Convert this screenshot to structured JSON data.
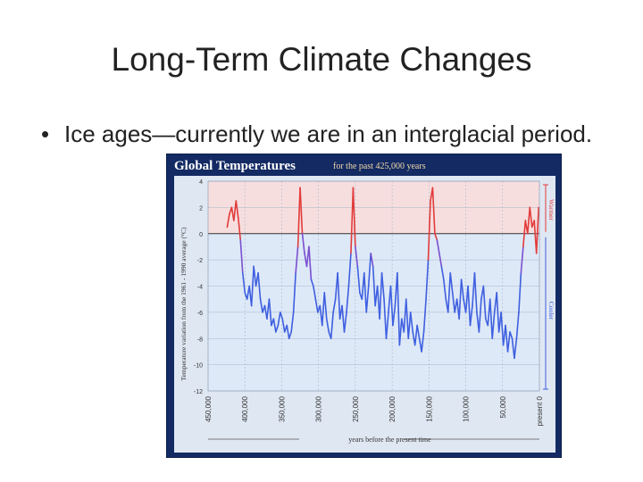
{
  "slide": {
    "title": "Long-Term Climate Changes",
    "bullet_symbol": "•",
    "bullet_text": "Ice ages—currently we are in an interglacial period."
  },
  "colors": {
    "frame": "#132a63",
    "warm_band": "#f7dede",
    "cool_band": "#dde9f7",
    "warm_line": "#e23b3b",
    "cool_line": "#3f5fe0",
    "title_text": "#ffffff",
    "subtitle_text": "#f3d9a8"
  },
  "chart_data": {
    "type": "line",
    "title": "Global Temperatures",
    "subtitle": "for the past 425,000 years",
    "xlabel": "years before the present time",
    "ylabel": "Temperature variation from the 1961 - 1990 average (°C)",
    "xlim": [
      450000,
      0
    ],
    "ylim": [
      -12,
      4
    ],
    "x_reversed": true,
    "grid": true,
    "legend": {
      "warmer": "Warmer",
      "cooler": "Cooler"
    },
    "x_ticks": [
      "450,000",
      "400,000",
      "350,000",
      "300,000",
      "250,000",
      "200,000",
      "150,000",
      "100,000",
      "50,000",
      "present 0"
    ],
    "x_tick_values": [
      450000,
      400000,
      350000,
      300000,
      250000,
      200000,
      150000,
      100000,
      50000,
      0
    ],
    "y_ticks": [
      "4",
      "2",
      "0",
      "-2",
      "-4",
      "-6",
      "-8",
      "-10",
      "-12"
    ],
    "y_tick_values": [
      4,
      2,
      0,
      -2,
      -4,
      -6,
      -8,
      -10,
      -12
    ],
    "series": [
      {
        "x": [
          424000,
          421000,
          418000,
          415000,
          412000,
          409000,
          406000,
          403000,
          400000,
          397000,
          394000,
          391000,
          388000,
          385000,
          382000,
          379000,
          376000,
          373000,
          370000,
          367000,
          364000,
          361000,
          358000,
          355000,
          352000,
          349000,
          346000,
          343000,
          340000,
          337000,
          334000,
          331000,
          328000,
          325000,
          322000,
          319000,
          316000,
          313000,
          310000,
          307000,
          304000,
          301000,
          298000,
          295000,
          292000,
          289000,
          286000,
          283000,
          280000,
          277000,
          274000,
          271000,
          268000,
          265000,
          262000,
          259000,
          256000,
          253000,
          250000,
          247000,
          244000,
          241000,
          238000,
          235000,
          232000,
          229000,
          226000,
          223000,
          220000,
          217000,
          214000,
          211000,
          208000,
          205000,
          202000,
          199000,
          196000,
          193000,
          190000,
          187000,
          184000,
          181000,
          178000,
          175000,
          172000,
          169000,
          166000,
          163000,
          160000,
          157000,
          154000,
          151000,
          148000,
          145000,
          142000,
          139000,
          136000,
          133000,
          130000,
          127000,
          124000,
          121000,
          118000,
          115000,
          112000,
          109000,
          106000,
          103000,
          100000,
          97000,
          94000,
          91000,
          88000,
          85000,
          82000,
          79000,
          76000,
          73000,
          70000,
          67000,
          64000,
          61000,
          58000,
          55000,
          52000,
          49000,
          46000,
          43000,
          40000,
          37000,
          34000,
          31000,
          28000,
          25000,
          22000,
          19000,
          16000,
          13000,
          10000,
          7000,
          4000,
          1000
        ],
        "values": [
          0.5,
          1.5,
          2.0,
          1.0,
          2.5,
          1.2,
          -0.5,
          -3.0,
          -4.5,
          -5.0,
          -4.0,
          -5.5,
          -2.5,
          -4.0,
          -3.0,
          -5.0,
          -6.0,
          -5.5,
          -6.5,
          -5.0,
          -7.0,
          -6.5,
          -7.5,
          -7.0,
          -6.0,
          -6.5,
          -7.5,
          -7.0,
          -8.0,
          -7.5,
          -6.0,
          -3.0,
          -1.0,
          3.5,
          0.0,
          -1.5,
          -2.5,
          -1.0,
          -3.5,
          -4.0,
          -5.0,
          -6.0,
          -5.5,
          -7.0,
          -4.5,
          -6.5,
          -7.5,
          -8.0,
          -6.0,
          -5.0,
          -3.0,
          -6.5,
          -5.5,
          -7.5,
          -6.0,
          -4.0,
          -1.5,
          3.5,
          -1.0,
          -2.5,
          -4.5,
          -5.0,
          -3.0,
          -6.0,
          -4.0,
          -1.5,
          -2.5,
          -5.5,
          -4.0,
          -6.5,
          -3.0,
          -5.0,
          -8.0,
          -6.0,
          -4.0,
          -7.0,
          -5.5,
          -3.0,
          -8.5,
          -6.5,
          -7.5,
          -5.0,
          -8.0,
          -6.0,
          -7.5,
          -8.5,
          -7.0,
          -8.0,
          -9.0,
          -7.5,
          -5.0,
          -2.0,
          2.5,
          3.5,
          0.0,
          -0.5,
          -1.5,
          -2.5,
          -3.5,
          -5.0,
          -6.0,
          -3.0,
          -4.5,
          -6.0,
          -5.0,
          -6.5,
          -3.5,
          -5.0,
          -6.0,
          -4.0,
          -7.0,
          -5.5,
          -3.0,
          -6.0,
          -7.5,
          -5.0,
          -4.0,
          -6.5,
          -7.0,
          -5.0,
          -8.0,
          -6.0,
          -4.5,
          -7.5,
          -6.0,
          -8.5,
          -7.0,
          -9.0,
          -7.5,
          -8.0,
          -9.5,
          -8.0,
          -6.0,
          -3.0,
          -1.0,
          1.0,
          0.0,
          2.0,
          0.5,
          1.0,
          -1.5,
          2.0
        ]
      }
    ]
  }
}
